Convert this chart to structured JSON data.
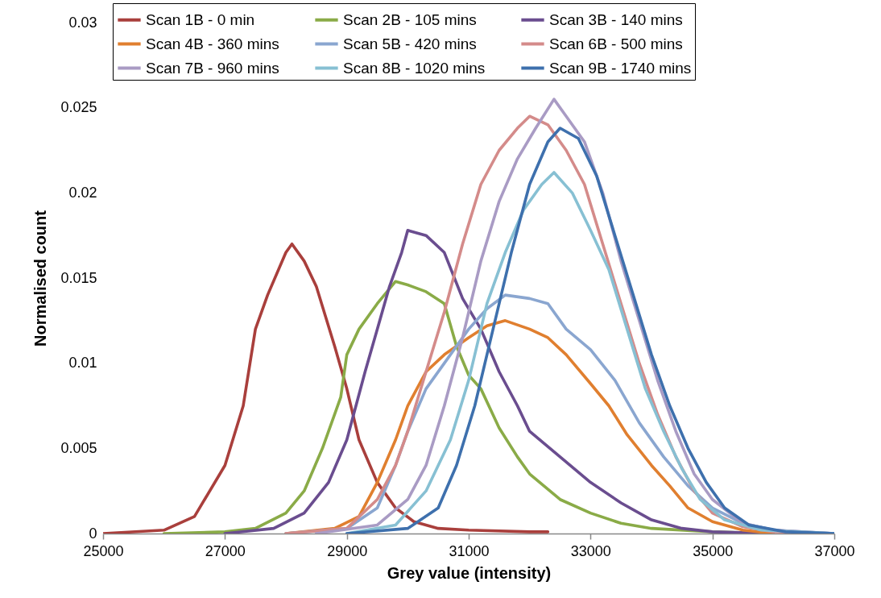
{
  "chart_data": {
    "type": "line",
    "xlabel": "Grey value (intensity)",
    "ylabel": "Normalised count",
    "xlim": [
      25000,
      37000
    ],
    "xticks": [
      25000,
      27000,
      29000,
      31000,
      33000,
      35000,
      37000
    ],
    "ylim": [
      0,
      0.03
    ],
    "yticks": [
      0,
      0.005,
      0.01,
      0.015,
      0.02,
      0.025,
      0.03
    ],
    "grid": false,
    "legend": "top",
    "marker": "none",
    "line_style": "solid",
    "series": [
      {
        "name": "Scan 1B - 0 min",
        "color": "#a93f3c",
        "x": [
          25000,
          26000,
          26500,
          27000,
          27300,
          27500,
          27700,
          28000,
          28100,
          28300,
          28500,
          28800,
          29000,
          29200,
          29500,
          29800,
          30100,
          30500,
          31000,
          32000,
          32300
        ],
        "values": [
          0,
          0.0002,
          0.001,
          0.004,
          0.0075,
          0.012,
          0.014,
          0.0165,
          0.017,
          0.016,
          0.0145,
          0.011,
          0.0085,
          0.0055,
          0.003,
          0.0015,
          0.0007,
          0.0003,
          0.0002,
          0.0001,
          0.0001
        ]
      },
      {
        "name": "Scan 2B - 105 mins",
        "color": "#8aab47",
        "x": [
          26000,
          27000,
          27500,
          28000,
          28300,
          28600,
          28900,
          29000,
          29200,
          29500,
          29800,
          30000,
          30300,
          30600,
          30800,
          31000,
          31200,
          31500,
          31800,
          32000,
          32500,
          33000,
          33500,
          34000,
          35000,
          36000
        ],
        "values": [
          0,
          0.0001,
          0.0003,
          0.0012,
          0.0025,
          0.005,
          0.008,
          0.0105,
          0.012,
          0.0135,
          0.0148,
          0.0146,
          0.0142,
          0.0135,
          0.011,
          0.0093,
          0.0085,
          0.0062,
          0.0045,
          0.0035,
          0.002,
          0.0012,
          0.0006,
          0.0003,
          0.0001,
          0
        ]
      },
      {
        "name": "Scan 3B - 140 mins",
        "color": "#6a4d8f",
        "x": [
          27000,
          27800,
          28300,
          28700,
          29000,
          29300,
          29500,
          29700,
          29900,
          30000,
          30300,
          30600,
          30900,
          31200,
          31500,
          31800,
          32000,
          32500,
          33000,
          33500,
          34000,
          34500,
          35000,
          36000
        ],
        "values": [
          0,
          0.0003,
          0.0012,
          0.003,
          0.0055,
          0.0095,
          0.012,
          0.0145,
          0.0165,
          0.0178,
          0.0175,
          0.0165,
          0.0138,
          0.012,
          0.0095,
          0.0075,
          0.006,
          0.0045,
          0.003,
          0.0018,
          0.0008,
          0.0003,
          0.0001,
          0
        ]
      },
      {
        "name": "Scan 4B - 360 mins",
        "color": "#e07f2f",
        "x": [
          28000,
          28800,
          29200,
          29500,
          29800,
          30000,
          30300,
          30600,
          31000,
          31300,
          31600,
          32000,
          32300,
          32600,
          33000,
          33300,
          33600,
          34000,
          34300,
          34600,
          35000,
          35500,
          36000
        ],
        "values": [
          0,
          0.0003,
          0.001,
          0.003,
          0.0055,
          0.0075,
          0.0095,
          0.0105,
          0.0115,
          0.0122,
          0.0125,
          0.012,
          0.0115,
          0.0105,
          0.0088,
          0.0075,
          0.0058,
          0.004,
          0.0028,
          0.0015,
          0.0007,
          0.0002,
          0
        ]
      },
      {
        "name": "Scan 5B - 420 mins",
        "color": "#8aa6d0",
        "x": [
          28000,
          29000,
          29500,
          29800,
          30000,
          30300,
          30700,
          31000,
          31300,
          31600,
          32000,
          32300,
          32600,
          33000,
          33400,
          33800,
          34200,
          34600,
          35000,
          35500,
          36000,
          37000
        ],
        "values": [
          0,
          0.0003,
          0.0015,
          0.004,
          0.006,
          0.0085,
          0.0105,
          0.012,
          0.0132,
          0.014,
          0.0138,
          0.0135,
          0.012,
          0.0108,
          0.009,
          0.0065,
          0.0045,
          0.0028,
          0.0015,
          0.0006,
          0.0002,
          0
        ]
      },
      {
        "name": "Scan 6B - 500 mins",
        "color": "#d48b8a",
        "x": [
          28000,
          29000,
          29500,
          29800,
          30000,
          30300,
          30600,
          30900,
          31200,
          31500,
          31800,
          32000,
          32300,
          32600,
          32900,
          33200,
          33500,
          33800,
          34100,
          34400,
          34700,
          35000,
          35500,
          36000,
          37000
        ],
        "values": [
          0,
          0.0003,
          0.002,
          0.004,
          0.006,
          0.0095,
          0.013,
          0.017,
          0.0205,
          0.0225,
          0.0238,
          0.0245,
          0.024,
          0.0225,
          0.0205,
          0.017,
          0.0135,
          0.01,
          0.007,
          0.0045,
          0.0025,
          0.0012,
          0.0004,
          0.0001,
          0
        ]
      },
      {
        "name": "Scan 7B - 960 mins",
        "color": "#a99bc4",
        "x": [
          28500,
          29500,
          30000,
          30300,
          30600,
          30900,
          31200,
          31500,
          31800,
          32100,
          32400,
          32600,
          32900,
          33200,
          33500,
          33800,
          34100,
          34400,
          34700,
          35000,
          35500,
          36000,
          37000
        ],
        "values": [
          0,
          0.0005,
          0.002,
          0.004,
          0.0075,
          0.0115,
          0.016,
          0.0195,
          0.022,
          0.0238,
          0.0255,
          0.0245,
          0.023,
          0.02,
          0.016,
          0.0125,
          0.009,
          0.006,
          0.0035,
          0.002,
          0.0006,
          0.0002,
          0
        ]
      },
      {
        "name": "Scan 8B - 1020 mins",
        "color": "#87c0d3",
        "x": [
          29000,
          29800,
          30300,
          30700,
          31000,
          31300,
          31600,
          31900,
          32200,
          32400,
          32700,
          33000,
          33300,
          33600,
          33900,
          34200,
          34500,
          34800,
          35200,
          35800,
          37000
        ],
        "values": [
          0,
          0.0005,
          0.0025,
          0.0055,
          0.009,
          0.0135,
          0.0165,
          0.019,
          0.0205,
          0.0212,
          0.02,
          0.0178,
          0.0155,
          0.012,
          0.0085,
          0.006,
          0.0038,
          0.002,
          0.0008,
          0.0002,
          0
        ]
      },
      {
        "name": "Scan 9B - 1740 mins",
        "color": "#3e70ad",
        "x": [
          29000,
          30000,
          30500,
          30800,
          31100,
          31400,
          31700,
          32000,
          32300,
          32500,
          32800,
          33100,
          33400,
          33700,
          34000,
          34300,
          34600,
          34900,
          35200,
          35600,
          36200,
          37000
        ],
        "values": [
          0,
          0.0003,
          0.0015,
          0.004,
          0.0075,
          0.012,
          0.0165,
          0.0205,
          0.023,
          0.0238,
          0.0232,
          0.021,
          0.0175,
          0.014,
          0.0105,
          0.0075,
          0.005,
          0.003,
          0.0015,
          0.0005,
          0.0001,
          0
        ]
      }
    ]
  }
}
